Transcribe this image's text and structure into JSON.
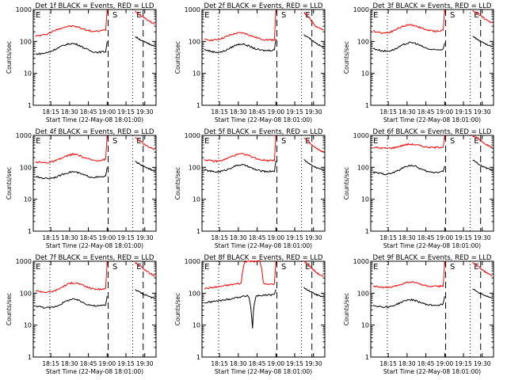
{
  "chart_data": [
    {
      "type": "line",
      "title": "Det 1f BLACK = Events, RED = LLD",
      "xlabel": "Start Time (22-May-08 18:01:00)",
      "ylabel": "Counts/sec",
      "y_scale": "log",
      "ylim": [
        1,
        1000
      ],
      "xlim_minutes_after_start": [
        0,
        38
      ],
      "x_ticks": [
        "18:15",
        "18:30",
        "18:45",
        "19:00",
        "19:15",
        "19:30"
      ],
      "y_ticks": [
        "1",
        "10",
        "100",
        "1000"
      ],
      "markers": [
        "E",
        "S",
        "E"
      ],
      "series": [
        {
          "color": "#ff0000",
          "values": [
            150,
            152,
            158,
            170,
            190,
            215,
            240,
            265,
            285,
            298,
            300,
            290,
            270,
            245,
            225,
            210,
            205,
            210,
            220,
            230
          ]
        },
        {
          "color": "#000000",
          "values": [
            40,
            41,
            42,
            44,
            48,
            55,
            62,
            70,
            78,
            84,
            86,
            82,
            74,
            64,
            56,
            50,
            47,
            46,
            47,
            48
          ]
        }
      ],
      "spike": {
        "red": 1000,
        "black": 100
      },
      "after_gap": {
        "red": [
          900,
          700,
          600,
          480,
          400,
          350
        ],
        "black": [
          140,
          120,
          100,
          90,
          80,
          70
        ]
      }
    },
    {
      "type": "line",
      "title": "Det 2f BLACK = Events, RED = LLD",
      "xlabel": "Start Time (22-May-08 18:01:00)",
      "ylabel": "Counts/sec",
      "y_scale": "log",
      "ylim": [
        1,
        1000
      ],
      "x_ticks": [
        "18:15",
        "18:30",
        "18:45",
        "19:00",
        "19:15",
        "19:30"
      ],
      "y_ticks": [
        "1",
        "10",
        "100",
        "1000"
      ],
      "markers": [
        "E",
        "S",
        "E"
      ],
      "series": [
        {
          "color": "#ff0000",
          "values": [
            115,
            112,
            110,
            112,
            118,
            128,
            142,
            158,
            172,
            182,
            185,
            178,
            162,
            145,
            132,
            122,
            116,
            113,
            112,
            113
          ]
        },
        {
          "color": "#000000",
          "values": [
            55,
            52,
            48,
            46,
            46,
            48,
            54,
            62,
            72,
            80,
            84,
            80,
            72,
            64,
            58,
            54,
            52,
            52,
            53,
            55
          ]
        }
      ],
      "spike": {
        "red": 1000,
        "black": 120
      },
      "after_gap": {
        "red": [
          800,
          600,
          420,
          300,
          260,
          220
        ],
        "black": [
          160,
          140,
          110,
          90,
          75,
          65
        ]
      }
    },
    {
      "type": "line",
      "title": "Det 3f BLACK = Events, RED = LLD",
      "xlabel": "Start Time (22-May-08 18:01:00)",
      "ylabel": "Counts/sec",
      "y_scale": "log",
      "ylim": [
        1,
        1000
      ],
      "x_ticks": [
        "18:15",
        "18:30",
        "18:45",
        "19:00",
        "19:15",
        "19:30"
      ],
      "y_ticks": [
        "1",
        "10",
        "100",
        "1000"
      ],
      "markers": [
        "E",
        "S",
        "E"
      ],
      "series": [
        {
          "color": "#ff0000",
          "values": [
            210,
            200,
            190,
            185,
            190,
            205,
            230,
            262,
            295,
            320,
            330,
            320,
            295,
            265,
            240,
            222,
            212,
            210,
            215,
            225
          ]
        },
        {
          "color": "#000000",
          "values": [
            60,
            56,
            52,
            50,
            50,
            53,
            58,
            66,
            76,
            86,
            92,
            90,
            82,
            72,
            64,
            58,
            55,
            54,
            55,
            58
          ]
        }
      ],
      "spike": {
        "red": 1000,
        "black": 90
      },
      "after_gap": {
        "red": [
          900,
          800,
          650,
          520,
          430,
          380
        ],
        "black": [
          150,
          120,
          100,
          85,
          75,
          68
        ]
      }
    },
    {
      "type": "line",
      "title": "Det 4f BLACK = Events, RED = LLD",
      "xlabel": "Start Time (22-May-08 18:01:00)",
      "ylabel": "Counts/sec",
      "y_scale": "log",
      "ylim": [
        1,
        1000
      ],
      "x_ticks": [
        "18:15",
        "18:30",
        "18:45",
        "19:00",
        "19:15",
        "19:30"
      ],
      "y_ticks": [
        "1",
        "10",
        "100",
        "1000"
      ],
      "markers": [
        "E",
        "S",
        "E"
      ],
      "series": [
        {
          "color": "#ff0000",
          "values": [
            150,
            145,
            140,
            140,
            145,
            155,
            170,
            190,
            215,
            240,
            255,
            250,
            230,
            205,
            185,
            172,
            165,
            165,
            170,
            180
          ]
        },
        {
          "color": "#000000",
          "values": [
            50,
            48,
            46,
            45,
            46,
            48,
            52,
            58,
            64,
            70,
            73,
            70,
            64,
            58,
            53,
            50,
            49,
            49,
            50,
            52
          ]
        }
      ],
      "spike": {
        "red": 1000,
        "black": 100
      },
      "after_gap": {
        "red": [
          850,
          700,
          560,
          460,
          400,
          360
        ],
        "black": [
          150,
          130,
          110,
          95,
          85,
          75
        ]
      }
    },
    {
      "type": "line",
      "title": "Det 5f BLACK = Events, RED = LLD",
      "xlabel": "Start Time (22-May-08 18:01:00)",
      "ylabel": "Counts/sec",
      "y_scale": "log",
      "ylim": [
        1,
        1000
      ],
      "x_ticks": [
        "18:15",
        "18:30",
        "18:45",
        "19:00",
        "19:15",
        "19:30"
      ],
      "y_ticks": [
        "1",
        "10",
        "100",
        "1000"
      ],
      "markers": [
        "E",
        "S",
        "E"
      ],
      "series": [
        {
          "color": "#ff0000",
          "values": [
            175,
            165,
            158,
            155,
            158,
            168,
            185,
            208,
            232,
            252,
            262,
            255,
            235,
            210,
            190,
            176,
            168,
            165,
            166,
            170
          ]
        },
        {
          "color": "#000000",
          "values": [
            82,
            78,
            74,
            72,
            73,
            77,
            84,
            94,
            106,
            116,
            120,
            115,
            104,
            92,
            84,
            78,
            75,
            74,
            75,
            77
          ]
        }
      ],
      "spike": {
        "red": 1000,
        "black": 160
      },
      "after_gap": {
        "red": [
          850,
          650,
          500,
          400,
          340,
          300
        ],
        "black": [
          170,
          140,
          115,
          100,
          90,
          82
        ]
      }
    },
    {
      "type": "line",
      "title": "Det 6f BLACK = Events, RED = LLD",
      "xlabel": "Start Time (22-May-08 18:01:00)",
      "ylabel": "Counts/sec",
      "y_scale": "log",
      "ylim": [
        1,
        1000
      ],
      "x_ticks": [
        "18:15",
        "18:30",
        "18:45",
        "19:00",
        "19:15",
        "19:30"
      ],
      "y_ticks": [
        "1",
        "10",
        "100",
        "1000"
      ],
      "markers": [
        "E",
        "S",
        "E"
      ],
      "series": [
        {
          "color": "#ff0000",
          "values": [
            420,
            410,
            400,
            395,
            395,
            400,
            420,
            450,
            485,
            515,
            530,
            520,
            495,
            465,
            440,
            425,
            418,
            418,
            425,
            440
          ]
        },
        {
          "color": "#000000",
          "values": [
            70,
            67,
            64,
            62,
            62,
            65,
            72,
            82,
            95,
            108,
            115,
            112,
            100,
            88,
            78,
            72,
            70,
            70,
            72,
            76
          ]
        }
      ],
      "spike": {
        "red": 1000,
        "black": 110
      },
      "after_gap": {
        "red": [
          950,
          850,
          700,
          560,
          470,
          420
        ],
        "black": [
          170,
          140,
          115,
          100,
          90,
          80
        ]
      }
    },
    {
      "type": "line",
      "title": "Det 7f BLACK = Events, RED = LLD",
      "xlabel": "Start Time (22-May-08 18:01:00)",
      "ylabel": "Counts/sec",
      "y_scale": "log",
      "ylim": [
        1,
        1000
      ],
      "x_ticks": [
        "18:15",
        "18:30",
        "18:45",
        "19:00",
        "19:15",
        "19:30"
      ],
      "y_ticks": [
        "1",
        "10",
        "100",
        "1000"
      ],
      "markers": [
        "E",
        "S",
        "E"
      ],
      "series": [
        {
          "color": "#ff0000",
          "values": [
            120,
            115,
            110,
            108,
            110,
            118,
            132,
            152,
            176,
            198,
            212,
            208,
            192,
            172,
            155,
            142,
            135,
            132,
            134,
            140
          ]
        },
        {
          "color": "#000000",
          "values": [
            40,
            38,
            36,
            35,
            35,
            37,
            41,
            47,
            54,
            61,
            65,
            63,
            57,
            50,
            45,
            42,
            40,
            40,
            41,
            43
          ]
        }
      ],
      "spike": {
        "red": 1000,
        "black": 80
      },
      "after_gap": {
        "red": [
          900,
          750,
          600,
          480,
          400,
          340
        ],
        "black": [
          130,
          110,
          95,
          85,
          75,
          68
        ]
      }
    },
    {
      "type": "line",
      "title": "Det 8f BLACK = Events, RED = LLD",
      "xlabel": "Start Time (22-May-08 18:01:00)",
      "ylabel": "Counts/sec",
      "y_scale": "log",
      "ylim": [
        1,
        1000
      ],
      "x_ticks": [
        "18:15",
        "18:30",
        "18:45",
        "19:00",
        "19:15",
        "19:30"
      ],
      "y_ticks": [
        "1",
        "10",
        "100",
        "1000"
      ],
      "markers": [
        "E",
        "S",
        "E"
      ],
      "series": [
        {
          "color": "#ff0000",
          "values": [
            140,
            145,
            150,
            155,
            160,
            168,
            175,
            182,
            190,
            198,
            205,
            1000,
            1000,
            1000,
            1000,
            1000,
            190,
            188,
            190,
            195
          ]
        },
        {
          "color": "#000000",
          "values": [
            50,
            52,
            54,
            56,
            58,
            60,
            63,
            66,
            70,
            74,
            78,
            80,
            82,
            3,
            82,
            84,
            86,
            87,
            88,
            90
          ]
        }
      ],
      "spike": {
        "red": 1000,
        "black": 130
      },
      "after_gap": {
        "red": [
          1000,
          800,
          600,
          460,
          380,
          320
        ],
        "black": [
          150,
          125,
          105,
          92,
          82,
          74
        ]
      }
    },
    {
      "type": "line",
      "title": "Det 9f BLACK = Events, RED = LLD",
      "xlabel": "Start Time (22-May-08 18:01:00)",
      "ylabel": "Counts/sec",
      "y_scale": "log",
      "ylim": [
        1,
        1000
      ],
      "x_ticks": [
        "18:15",
        "18:30",
        "18:45",
        "19:00",
        "19:15",
        "19:30"
      ],
      "y_ticks": [
        "1",
        "10",
        "100",
        "1000"
      ],
      "markers": [
        "E",
        "S",
        "E"
      ],
      "series": [
        {
          "color": "#ff0000",
          "values": [
            170,
            162,
            155,
            150,
            150,
            155,
            165,
            180,
            198,
            215,
            225,
            220,
            205,
            188,
            175,
            166,
            162,
            162,
            165,
            172
          ]
        },
        {
          "color": "#000000",
          "values": [
            42,
            40,
            38,
            37,
            37,
            39,
            43,
            48,
            54,
            60,
            63,
            61,
            56,
            50,
            46,
            43,
            42,
            42,
            43,
            45
          ]
        }
      ],
      "spike": {
        "red": 1000,
        "black": 80
      },
      "after_gap": {
        "red": [
          900,
          750,
          600,
          480,
          400,
          340
        ],
        "black": [
          140,
          115,
          98,
          86,
          76,
          68
        ]
      }
    }
  ]
}
